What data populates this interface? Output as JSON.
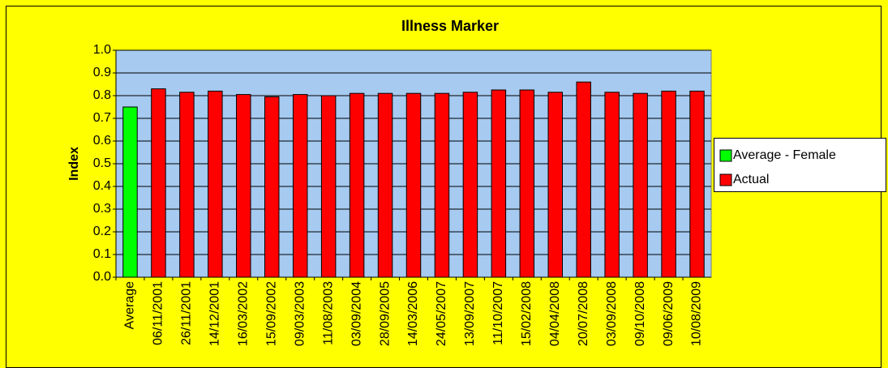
{
  "chart_data": {
    "type": "bar",
    "title": "Illness Marker",
    "y_label": "Index",
    "categories": [
      "Average",
      "06/11/2001",
      "26/11/2001",
      "14/12/2001",
      "16/03/2002",
      "15/09/2002",
      "09/03/2003",
      "11/08/2003",
      "03/09/2004",
      "28/09/2005",
      "14/03/2006",
      "24/05/2007",
      "13/09/2007",
      "11/10/2007",
      "15/02/2008",
      "04/04/2008",
      "20/07/2008",
      "03/09/2008",
      "09/10/2008",
      "09/06/2009",
      "10/08/2009"
    ],
    "series": [
      {
        "name": "Average - Female",
        "color": "#00ff00",
        "values": [
          0.75,
          null,
          null,
          null,
          null,
          null,
          null,
          null,
          null,
          null,
          null,
          null,
          null,
          null,
          null,
          null,
          null,
          null,
          null,
          null,
          null
        ]
      },
      {
        "name": "Actual",
        "color": "#ff0000",
        "values": [
          null,
          0.83,
          0.815,
          0.82,
          0.805,
          0.795,
          0.805,
          0.8,
          0.81,
          0.81,
          0.81,
          0.81,
          0.815,
          0.825,
          0.825,
          0.815,
          0.86,
          0.815,
          0.81,
          0.82,
          0.82
        ]
      }
    ],
    "ylim": [
      0,
      1
    ],
    "yticks": [
      {
        "value": 0,
        "label": "0.0"
      },
      0.1,
      0.2,
      0.3,
      0.4,
      0.5,
      0.6,
      0.7,
      0.8,
      0.9,
      {
        "value": 1,
        "label": "1.0"
      }
    ],
    "grid": true,
    "legend": "right"
  }
}
